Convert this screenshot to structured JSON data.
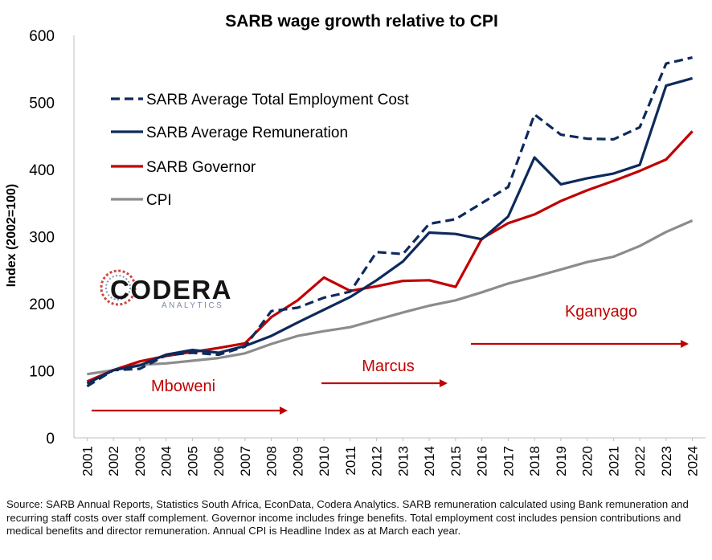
{
  "chart_data": {
    "type": "line",
    "title": "SARB wage growth relative to CPI",
    "ylabel": "Index (2002=100)",
    "xlabel": "",
    "ylim": [
      0,
      600
    ],
    "yticks": [
      0,
      100,
      200,
      300,
      400,
      500,
      600
    ],
    "x": [
      "2001",
      "2002",
      "2003",
      "2004",
      "2005",
      "2006",
      "2007",
      "2008",
      "2009",
      "2010",
      "2011",
      "2012",
      "2013",
      "2014",
      "2015",
      "2016",
      "2017",
      "2018",
      "2019",
      "2020",
      "2021",
      "2022",
      "2023",
      "2024"
    ],
    "series": [
      {
        "name": "SARB Average Total Employment Cost",
        "style": "dashed",
        "color": "#0d2a5c",
        "values": [
          77,
          101,
          103,
          123,
          127,
          124,
          136,
          189,
          194,
          209,
          218,
          277,
          274,
          319,
          326,
          350,
          374,
          482,
          452,
          446,
          445,
          463,
          558,
          567
        ]
      },
      {
        "name": "SARB Average Remuneration",
        "style": "solid",
        "color": "#0d2a5c",
        "values": [
          81,
          101,
          108,
          124,
          131,
          127,
          137,
          152,
          172,
          191,
          210,
          235,
          263,
          306,
          304,
          296,
          330,
          418,
          378,
          387,
          394,
          407,
          525,
          536
        ]
      },
      {
        "name": "SARB Governor",
        "style": "solid",
        "color": "#c00000",
        "values": [
          84,
          101,
          114,
          122,
          128,
          134,
          141,
          180,
          205,
          239,
          219,
          226,
          234,
          235,
          225,
          297,
          320,
          333,
          353,
          369,
          383,
          398,
          415,
          457
        ]
      },
      {
        "name": "CPI",
        "style": "solid",
        "color": "#8c8c8c",
        "values": [
          95,
          101,
          109,
          111,
          115,
          119,
          126,
          140,
          152,
          159,
          165,
          176,
          187,
          197,
          205,
          217,
          230,
          240,
          251,
          262,
          270,
          286,
          307,
          324
        ]
      }
    ],
    "legend_position": "top-left",
    "grid": false,
    "annotations": [
      {
        "label": "Mboweni",
        "from": "2001",
        "to": "2009"
      },
      {
        "label": "Marcus",
        "from": "2010",
        "to": "2015"
      },
      {
        "label": "Kganyago",
        "from": "2016",
        "to": "2024"
      }
    ]
  },
  "logo": {
    "name": "CODERA",
    "sub": "ANALYTICS"
  },
  "source_note": "Source: SARB Annual Reports, Statistics South Africa, EconData, Codera Analytics. SARB remuneration calculated using Bank remuneration and recurring staff costs over staff complement. Governor income includes fringe benefits. Total employment cost includes pension contributions and medical benefits and director remuneration. Annual CPI is Headline Index as at March each year.",
  "colors": {
    "navy": "#0d2a5c",
    "red": "#c00000",
    "grey": "#8c8c8c",
    "annotation": "#c00000"
  }
}
